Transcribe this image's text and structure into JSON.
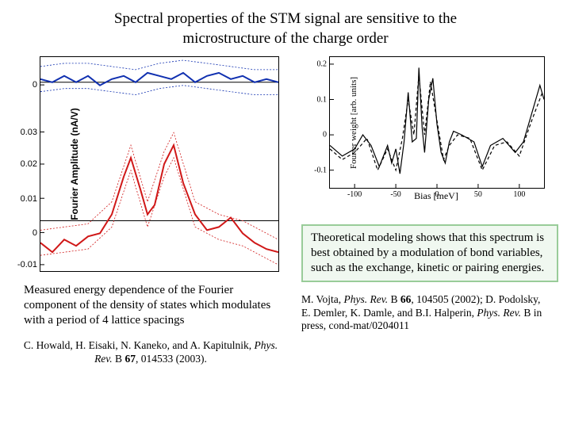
{
  "title_line1": "Spectral properties of the STM signal are sensitive to the",
  "title_line2": "microstructure of the charge order",
  "left_chart": {
    "ylabel": "Fourier Amplitude (nA/V)",
    "yticks": [
      {
        "v": 0.044,
        "label": "0",
        "pos": 13
      },
      {
        "v": 0.03,
        "label": "0.03",
        "pos": 35
      },
      {
        "v": 0.02,
        "label": "0.02",
        "pos": 50
      },
      {
        "v": 0.01,
        "label": "0.01",
        "pos": 66
      },
      {
        "v": 0.0,
        "label": "0",
        "pos": 82
      },
      {
        "v": -0.01,
        "label": "-0.01",
        "pos": 97
      }
    ],
    "blue_main": [
      [
        0,
        0.045
      ],
      [
        0.05,
        0.044
      ],
      [
        0.1,
        0.046
      ],
      [
        0.15,
        0.044
      ],
      [
        0.2,
        0.046
      ],
      [
        0.25,
        0.043
      ],
      [
        0.3,
        0.045
      ],
      [
        0.35,
        0.046
      ],
      [
        0.4,
        0.044
      ],
      [
        0.45,
        0.047
      ],
      [
        0.5,
        0.046
      ],
      [
        0.55,
        0.045
      ],
      [
        0.6,
        0.047
      ],
      [
        0.65,
        0.044
      ],
      [
        0.7,
        0.046
      ],
      [
        0.75,
        0.047
      ],
      [
        0.8,
        0.045
      ],
      [
        0.85,
        0.046
      ],
      [
        0.9,
        0.044
      ],
      [
        0.95,
        0.045
      ],
      [
        1,
        0.044
      ]
    ],
    "blue_upper": [
      [
        0,
        0.049
      ],
      [
        0.1,
        0.05
      ],
      [
        0.2,
        0.05
      ],
      [
        0.3,
        0.049
      ],
      [
        0.4,
        0.048
      ],
      [
        0.5,
        0.05
      ],
      [
        0.6,
        0.051
      ],
      [
        0.7,
        0.05
      ],
      [
        0.8,
        0.049
      ],
      [
        0.9,
        0.048
      ],
      [
        1,
        0.048
      ]
    ],
    "blue_lower": [
      [
        0,
        0.041
      ],
      [
        0.1,
        0.042
      ],
      [
        0.2,
        0.042
      ],
      [
        0.3,
        0.041
      ],
      [
        0.4,
        0.04
      ],
      [
        0.5,
        0.042
      ],
      [
        0.6,
        0.043
      ],
      [
        0.7,
        0.042
      ],
      [
        0.8,
        0.041
      ],
      [
        0.9,
        0.04
      ],
      [
        1,
        0.04
      ]
    ],
    "red_main": [
      [
        0,
        -0.007
      ],
      [
        0.05,
        -0.01
      ],
      [
        0.1,
        -0.006
      ],
      [
        0.15,
        -0.008
      ],
      [
        0.2,
        -0.005
      ],
      [
        0.25,
        -0.004
      ],
      [
        0.3,
        0.002
      ],
      [
        0.35,
        0.014
      ],
      [
        0.38,
        0.02
      ],
      [
        0.42,
        0.01
      ],
      [
        0.45,
        0.002
      ],
      [
        0.48,
        0.005
      ],
      [
        0.52,
        0.018
      ],
      [
        0.56,
        0.024
      ],
      [
        0.6,
        0.012
      ],
      [
        0.65,
        0.002
      ],
      [
        0.7,
        -0.003
      ],
      [
        0.75,
        -0.002
      ],
      [
        0.8,
        0.001
      ],
      [
        0.85,
        -0.004
      ],
      [
        0.9,
        -0.007
      ],
      [
        0.95,
        -0.009
      ],
      [
        1,
        -0.01
      ]
    ],
    "red_upper": [
      [
        0,
        -0.003
      ],
      [
        0.1,
        -0.002
      ],
      [
        0.2,
        -0.001
      ],
      [
        0.3,
        0.006
      ],
      [
        0.38,
        0.024
      ],
      [
        0.45,
        0.006
      ],
      [
        0.52,
        0.022
      ],
      [
        0.56,
        0.028
      ],
      [
        0.65,
        0.006
      ],
      [
        0.75,
        0.002
      ],
      [
        0.85,
        0.0
      ],
      [
        1,
        -0.006
      ]
    ],
    "red_lower": [
      [
        0,
        -0.011
      ],
      [
        0.1,
        -0.01
      ],
      [
        0.2,
        -0.009
      ],
      [
        0.3,
        -0.002
      ],
      [
        0.38,
        0.016
      ],
      [
        0.45,
        -0.002
      ],
      [
        0.52,
        0.014
      ],
      [
        0.56,
        0.02
      ],
      [
        0.65,
        -0.002
      ],
      [
        0.75,
        -0.006
      ],
      [
        0.85,
        -0.008
      ],
      [
        1,
        -0.014
      ]
    ],
    "colors": {
      "blue": "#1030b0",
      "red": "#d01818"
    }
  },
  "right_chart": {
    "ylabel": "Fourier weight [arb. units]",
    "xlabel": "Bias [meV]",
    "xlim": [
      -130,
      130
    ],
    "ylim": [
      -0.15,
      0.22
    ],
    "xticks": [
      -100,
      -50,
      0,
      50,
      100
    ],
    "yticks": [
      -0.1,
      0,
      0.1,
      0.2
    ],
    "solid": [
      [
        -130,
        -0.03
      ],
      [
        -115,
        -0.06
      ],
      [
        -100,
        -0.04
      ],
      [
        -90,
        0.0
      ],
      [
        -80,
        -0.03
      ],
      [
        -70,
        -0.09
      ],
      [
        -60,
        -0.03
      ],
      [
        -55,
        -0.08
      ],
      [
        -50,
        -0.04
      ],
      [
        -45,
        -0.11
      ],
      [
        -40,
        -0.02
      ],
      [
        -35,
        0.12
      ],
      [
        -30,
        -0.02
      ],
      [
        -25,
        -0.01
      ],
      [
        -22,
        0.19
      ],
      [
        -18,
        0.02
      ],
      [
        -15,
        -0.05
      ],
      [
        -10,
        0.1
      ],
      [
        -5,
        0.16
      ],
      [
        0,
        0.03
      ],
      [
        5,
        -0.05
      ],
      [
        10,
        -0.08
      ],
      [
        15,
        -0.02
      ],
      [
        20,
        0.01
      ],
      [
        30,
        0.0
      ],
      [
        45,
        -0.02
      ],
      [
        55,
        -0.09
      ],
      [
        65,
        -0.03
      ],
      [
        80,
        -0.01
      ],
      [
        95,
        -0.05
      ],
      [
        105,
        -0.02
      ],
      [
        115,
        0.06
      ],
      [
        125,
        0.14
      ],
      [
        130,
        0.1
      ]
    ],
    "dashed": [
      [
        -130,
        -0.04
      ],
      [
        -115,
        -0.07
      ],
      [
        -100,
        -0.05
      ],
      [
        -85,
        -0.01
      ],
      [
        -72,
        -0.1
      ],
      [
        -60,
        -0.04
      ],
      [
        -50,
        -0.1
      ],
      [
        -42,
        -0.01
      ],
      [
        -35,
        0.1
      ],
      [
        -28,
        0.0
      ],
      [
        -22,
        0.17
      ],
      [
        -15,
        0.0
      ],
      [
        -8,
        0.15
      ],
      [
        0,
        0.04
      ],
      [
        8,
        -0.07
      ],
      [
        15,
        -0.03
      ],
      [
        25,
        0.0
      ],
      [
        40,
        -0.01
      ],
      [
        55,
        -0.1
      ],
      [
        70,
        -0.03
      ],
      [
        85,
        -0.02
      ],
      [
        100,
        -0.06
      ],
      [
        115,
        0.04
      ],
      [
        128,
        0.12
      ]
    ]
  },
  "caption_left": "Measured energy dependence of the Fourier component of the density of states which modulates with a period of 4 lattice spacings",
  "ref_left_html": "C. Howald, H. Eisaki, N. Kaneko, and A. Kapitulnik, <i>Phys. Rev.</i> B <b>67</b>, 014533 (2003).",
  "theory_box": "Theoretical modeling shows that this spectrum is best obtained by a modulation of bond variables, such as the exchange, kinetic or pairing energies.",
  "ref_right_html": "M. Vojta, <i>Phys. Rev.</i> B <b>66</b>, 104505 (2002); D. Podolsky, E. Demler, K. Damle, and B.I. Halperin, <i>Phys. Rev.</i> B in press, cond-mat/0204011"
}
